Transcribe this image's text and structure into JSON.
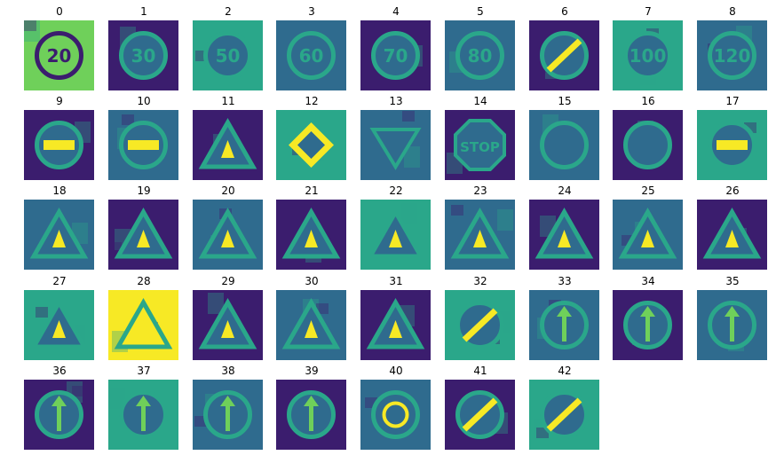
{
  "palette": {
    "dark": "#3b1d6e",
    "mid": "#2f6b8e",
    "teal": "#2aa78a",
    "green": "#6fd05a",
    "yellow": "#f7e925"
  },
  "classes": [
    {
      "label": "0",
      "icon": "speed-limit-sign-icon",
      "kind": "circle",
      "text": "20"
    },
    {
      "label": "1",
      "icon": "speed-limit-sign-icon",
      "kind": "circle",
      "text": "30"
    },
    {
      "label": "2",
      "icon": "speed-limit-sign-icon",
      "kind": "circle",
      "text": "50"
    },
    {
      "label": "3",
      "icon": "speed-limit-sign-icon",
      "kind": "circle",
      "text": "60"
    },
    {
      "label": "4",
      "icon": "speed-limit-sign-icon",
      "kind": "circle",
      "text": "70"
    },
    {
      "label": "5",
      "icon": "speed-limit-sign-icon",
      "kind": "circle",
      "text": "80"
    },
    {
      "label": "6",
      "icon": "end-speed-limit-sign-icon",
      "kind": "slash",
      "text": ""
    },
    {
      "label": "7",
      "icon": "speed-limit-sign-icon",
      "kind": "circle",
      "text": "100"
    },
    {
      "label": "8",
      "icon": "speed-limit-sign-icon",
      "kind": "circle",
      "text": "120"
    },
    {
      "label": "9",
      "icon": "no-passing-sign-icon",
      "kind": "bar",
      "text": ""
    },
    {
      "label": "10",
      "icon": "no-passing-trucks-sign-icon",
      "kind": "bar",
      "text": ""
    },
    {
      "label": "11",
      "icon": "right-of-way-sign-icon",
      "kind": "triangle",
      "text": ""
    },
    {
      "label": "12",
      "icon": "priority-road-sign-icon",
      "kind": "diamond",
      "text": ""
    },
    {
      "label": "13",
      "icon": "yield-sign-icon",
      "kind": "invtriangle",
      "text": ""
    },
    {
      "label": "14",
      "icon": "stop-sign-icon",
      "kind": "octagon",
      "text": "STOP"
    },
    {
      "label": "15",
      "icon": "no-vehicles-sign-icon",
      "kind": "circle",
      "text": ""
    },
    {
      "label": "16",
      "icon": "no-trucks-sign-icon",
      "kind": "circle",
      "text": ""
    },
    {
      "label": "17",
      "icon": "no-entry-sign-icon",
      "kind": "bar",
      "text": ""
    },
    {
      "label": "18",
      "icon": "general-caution-sign-icon",
      "kind": "triangle",
      "text": ""
    },
    {
      "label": "19",
      "icon": "curve-left-sign-icon",
      "kind": "triangle",
      "text": ""
    },
    {
      "label": "20",
      "icon": "curve-right-sign-icon",
      "kind": "triangle",
      "text": ""
    },
    {
      "label": "21",
      "icon": "double-curve-sign-icon",
      "kind": "triangle",
      "text": ""
    },
    {
      "label": "22",
      "icon": "bumpy-road-sign-icon",
      "kind": "triangle",
      "text": ""
    },
    {
      "label": "23",
      "icon": "slippery-road-sign-icon",
      "kind": "triangle",
      "text": ""
    },
    {
      "label": "24",
      "icon": "road-narrows-sign-icon",
      "kind": "triangle",
      "text": ""
    },
    {
      "label": "25",
      "icon": "road-work-sign-icon",
      "kind": "triangle",
      "text": ""
    },
    {
      "label": "26",
      "icon": "traffic-signals-sign-icon",
      "kind": "triangle",
      "text": ""
    },
    {
      "label": "27",
      "icon": "pedestrians-sign-icon",
      "kind": "triangle",
      "text": ""
    },
    {
      "label": "28",
      "icon": "children-crossing-sign-icon",
      "kind": "triangle",
      "text": ""
    },
    {
      "label": "29",
      "icon": "bicycles-crossing-sign-icon",
      "kind": "triangle",
      "text": ""
    },
    {
      "label": "30",
      "icon": "ice-snow-sign-icon",
      "kind": "triangle",
      "text": ""
    },
    {
      "label": "31",
      "icon": "wild-animals-sign-icon",
      "kind": "triangle",
      "text": ""
    },
    {
      "label": "32",
      "icon": "end-all-limits-sign-icon",
      "kind": "slash",
      "text": ""
    },
    {
      "label": "33",
      "icon": "turn-right-sign-icon",
      "kind": "arrow",
      "text": ""
    },
    {
      "label": "34",
      "icon": "turn-left-sign-icon",
      "kind": "arrow",
      "text": ""
    },
    {
      "label": "35",
      "icon": "ahead-only-sign-icon",
      "kind": "arrow",
      "text": ""
    },
    {
      "label": "36",
      "icon": "straight-or-right-sign-icon",
      "kind": "arrow",
      "text": ""
    },
    {
      "label": "37",
      "icon": "straight-or-left-sign-icon",
      "kind": "arrow",
      "text": ""
    },
    {
      "label": "38",
      "icon": "keep-right-sign-icon",
      "kind": "arrow",
      "text": ""
    },
    {
      "label": "39",
      "icon": "keep-left-sign-icon",
      "kind": "arrow",
      "text": ""
    },
    {
      "label": "40",
      "icon": "roundabout-sign-icon",
      "kind": "roundabout",
      "text": ""
    },
    {
      "label": "41",
      "icon": "end-no-passing-sign-icon",
      "kind": "slash",
      "text": ""
    },
    {
      "label": "42",
      "icon": "end-no-passing-trucks-sign-icon",
      "kind": "slash",
      "text": ""
    }
  ]
}
